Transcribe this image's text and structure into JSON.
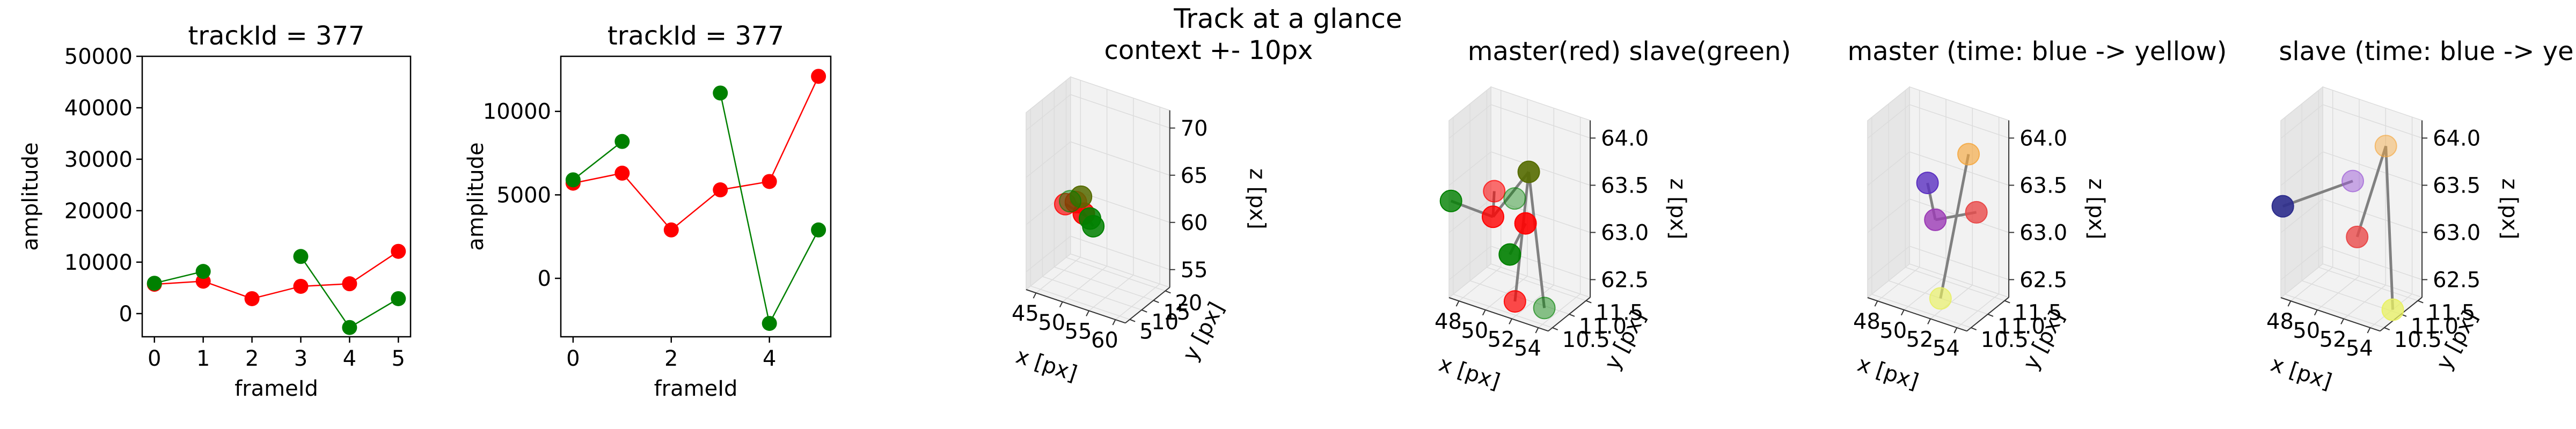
{
  "figure": {
    "suptitle": "Track at a glance"
  },
  "colors": {
    "master": "#ff0000",
    "slave": "#008000",
    "link": "#808080",
    "pane": "#f2f2f2",
    "pane_side": "#e6e6e6",
    "grid": "#dcdcdc"
  },
  "chart_data": [
    {
      "type": "line",
      "title": "trackId = 377",
      "xlabel": "frameId",
      "ylabel": "amplitude",
      "xlim": [
        -0.25,
        5.25
      ],
      "ylim": [
        -4500,
        50000
      ],
      "xticks": [
        "0",
        "1",
        "2",
        "3",
        "4",
        "5"
      ],
      "yticks": [
        "0",
        "10000",
        "20000",
        "30000",
        "40000",
        "50000"
      ],
      "series": [
        {
          "color": "red",
          "x": [
            0,
            1,
            2,
            3,
            4,
            5
          ],
          "y": [
            5700,
            6300,
            2900,
            5300,
            5800,
            12100
          ]
        },
        {
          "color": "green",
          "segments": [
            {
              "x": [
                0,
                1
              ],
              "y": [
                5900,
                8200
              ]
            },
            {
              "x": [
                3,
                4,
                5
              ],
              "y": [
                11100,
                -2700,
                2900
              ]
            }
          ]
        }
      ]
    },
    {
      "type": "line",
      "title": "trackId = 377",
      "xlabel": "frameId",
      "ylabel": "amplitude",
      "xlim": [
        -0.25,
        5.25
      ],
      "ylim": [
        -3500,
        13300
      ],
      "xticks": [
        "0",
        "2",
        "4"
      ],
      "yticks": [
        "0",
        "5000",
        "10000"
      ],
      "series": [
        {
          "color": "red",
          "x": [
            0,
            1,
            2,
            3,
            4,
            5
          ],
          "y": [
            5700,
            6300,
            2900,
            5300,
            5800,
            12100
          ]
        },
        {
          "color": "green",
          "segments": [
            {
              "x": [
                0,
                1
              ],
              "y": [
                5900,
                8200
              ]
            },
            {
              "x": [
                3,
                4,
                5
              ],
              "y": [
                11100,
                -2700,
                2900
              ]
            }
          ]
        }
      ]
    },
    {
      "type": "scatter",
      "title": "context +- 10px",
      "projection": "3d",
      "xlabel": "x [px]",
      "ylabel": "y [px]",
      "zlabel": "z [px]",
      "xticks": [
        "45",
        "50",
        "55",
        "60"
      ],
      "yticks": [
        "5",
        "10",
        "15",
        "20"
      ],
      "zticks": [
        "55",
        "60",
        "65",
        "70"
      ]
    },
    {
      "type": "scatter",
      "title": "master(red) slave(green)",
      "projection": "3d",
      "xlabel": "x [px]",
      "ylabel": "y [px]",
      "zlabel": "z [px]",
      "xticks": [
        "48",
        "50",
        "52",
        "54"
      ],
      "yticks": [
        "10.5",
        "11.0",
        "11.5"
      ],
      "zticks": [
        "62.5",
        "63.0",
        "63.5",
        "64.0"
      ]
    },
    {
      "type": "scatter",
      "title": "master (time: blue -> yellow)",
      "projection": "3d",
      "xlabel": "x [px]",
      "ylabel": "y [px]",
      "zlabel": "z [px]",
      "xticks": [
        "48",
        "50",
        "52",
        "54"
      ],
      "yticks": [
        "10.5",
        "11.0",
        "11.5"
      ],
      "zticks": [
        "62.5",
        "63.0",
        "63.5",
        "64.0"
      ]
    },
    {
      "type": "scatter",
      "title": "slave (time: blue -> yellow)",
      "projection": "3d",
      "xlabel": "x [px]",
      "ylabel": "y [px]",
      "zlabel": "z [px]",
      "xticks": [
        "48",
        "50",
        "52",
        "54"
      ],
      "yticks": [
        "10.5",
        "11.0",
        "11.5"
      ],
      "zticks": [
        "62.5",
        "63.0",
        "63.5",
        "64.0"
      ]
    }
  ]
}
